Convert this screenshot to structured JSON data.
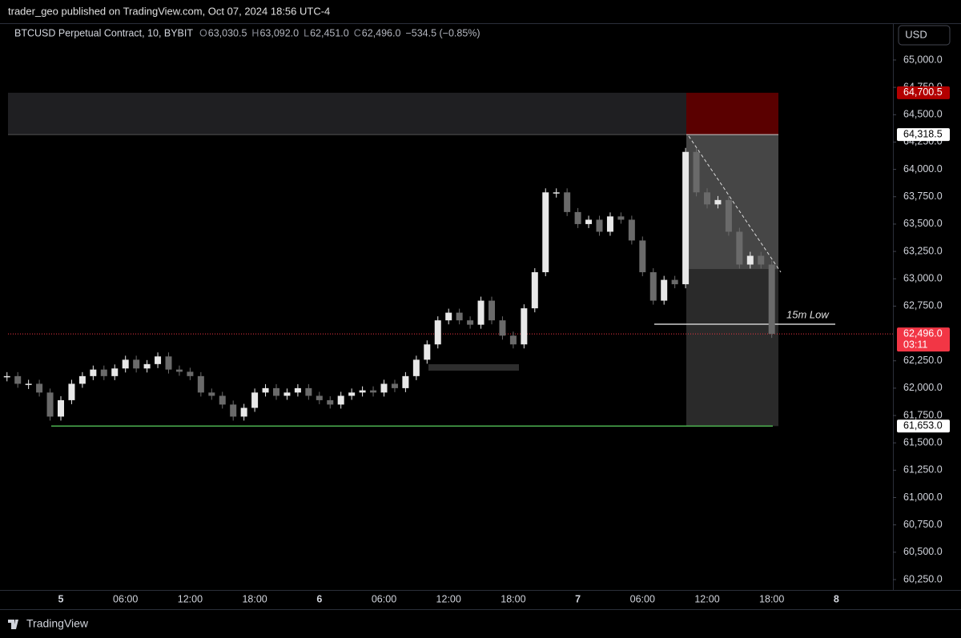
{
  "header": {
    "publisher": "trader_geo published on TradingView.com, Oct 07, 2024 18:56 UTC-4"
  },
  "legend": {
    "symbol": "BTCUSD Perpetual Contract, 10, BYBIT",
    "items": [
      {
        "key": "O",
        "value": "63,030.5"
      },
      {
        "key": "H",
        "value": "63,092.0"
      },
      {
        "key": "L",
        "value": "62,451.0"
      },
      {
        "key": "C",
        "value": "62,496.0"
      }
    ],
    "change": "−534.5 (−0.85%)"
  },
  "currency_button": "USD",
  "footer": {
    "brand": "TradingView"
  },
  "chart_data": {
    "type": "candlestick",
    "categories": [
      null,
      null,
      null,
      null,
      null,
      "5",
      null,
      null,
      null,
      null,
      null,
      "06:00",
      null,
      null,
      null,
      null,
      null,
      "12:00",
      null,
      null,
      null,
      null,
      null,
      "18:00",
      null,
      null,
      null,
      null,
      null,
      "6",
      null,
      null,
      null,
      null,
      null,
      "06:00",
      null,
      null,
      null,
      null,
      null,
      "12:00",
      null,
      null,
      null,
      null,
      null,
      "18:00",
      null,
      null,
      null,
      null,
      null,
      "7",
      null,
      null,
      null,
      null,
      null,
      "06:00",
      null,
      null,
      null,
      null,
      null,
      "12:00",
      null,
      null,
      null,
      null,
      null,
      "18:00",
      null,
      null,
      null,
      null,
      null,
      "8"
    ],
    "close": [
      62110,
      62040,
      62040,
      61960,
      61740,
      61890,
      62040,
      62110,
      62170,
      62110,
      62180,
      62260,
      62180,
      62220,
      62290,
      62170,
      62150,
      62110,
      61960,
      61930,
      61850,
      61740,
      61820,
      61960,
      62000,
      61930,
      61960,
      62000,
      61930,
      61890,
      61850,
      61930,
      61960,
      61980,
      61960,
      62040,
      62000,
      62110,
      62260,
      62400,
      62620,
      62690,
      62620,
      62580,
      62800,
      62620,
      62480,
      62400,
      62730,
      63060,
      63790,
      63790,
      63610,
      63500,
      63540,
      63430,
      63570,
      63540,
      63350,
      63060,
      62800,
      62990,
      62950,
      64160,
      63790,
      63680,
      63720,
      63430,
      63130,
      63210,
      63130,
      62496,
      null,
      null,
      null,
      null,
      null,
      null
    ],
    "up_color": "#e8e8e8",
    "down_color": "#6a6a6a",
    "ylim": [
      60155,
      65329
    ],
    "yticks": [
      {
        "value": 65000,
        "label": "65,000.0"
      },
      {
        "value": 64750,
        "label": "64,750.0"
      },
      {
        "value": 64500,
        "label": "64,500.0"
      },
      {
        "value": 64250,
        "label": "64,250.0"
      },
      {
        "value": 64000,
        "label": "64,000.0"
      },
      {
        "value": 63750,
        "label": "63,750.0"
      },
      {
        "value": 63500,
        "label": "63,500.0"
      },
      {
        "value": 63250,
        "label": "63,250.0"
      },
      {
        "value": 63000,
        "label": "63,000.0"
      },
      {
        "value": 62750,
        "label": "62,750.0"
      },
      {
        "value": 62250,
        "label": "62,250.0"
      },
      {
        "value": 62000,
        "label": "62,000.0"
      },
      {
        "value": 61750,
        "label": "61,750.0"
      },
      {
        "value": 61500,
        "label": "61,500.0"
      },
      {
        "value": 61250,
        "label": "61,250.0"
      },
      {
        "value": 61000,
        "label": "61,000.0"
      },
      {
        "value": 60750,
        "label": "60,750.0"
      },
      {
        "value": 60500,
        "label": "60,500.0"
      },
      {
        "value": 60250,
        "label": "60,250.0"
      }
    ],
    "price_labels": [
      {
        "value": 64700.5,
        "label": "64,700.5",
        "color": "#b30000"
      },
      {
        "value": 64318.5,
        "label": "64,318.5",
        "color": "#ffffff"
      },
      {
        "value": 61653,
        "label": "61,653.0",
        "color": "#ffffff"
      },
      {
        "value": 62496,
        "label": "62,496.0",
        "color": "#f23645"
      }
    ],
    "countdown": "03:11",
    "annotation": {
      "text": "15m Low",
      "value": 62585
    }
  }
}
